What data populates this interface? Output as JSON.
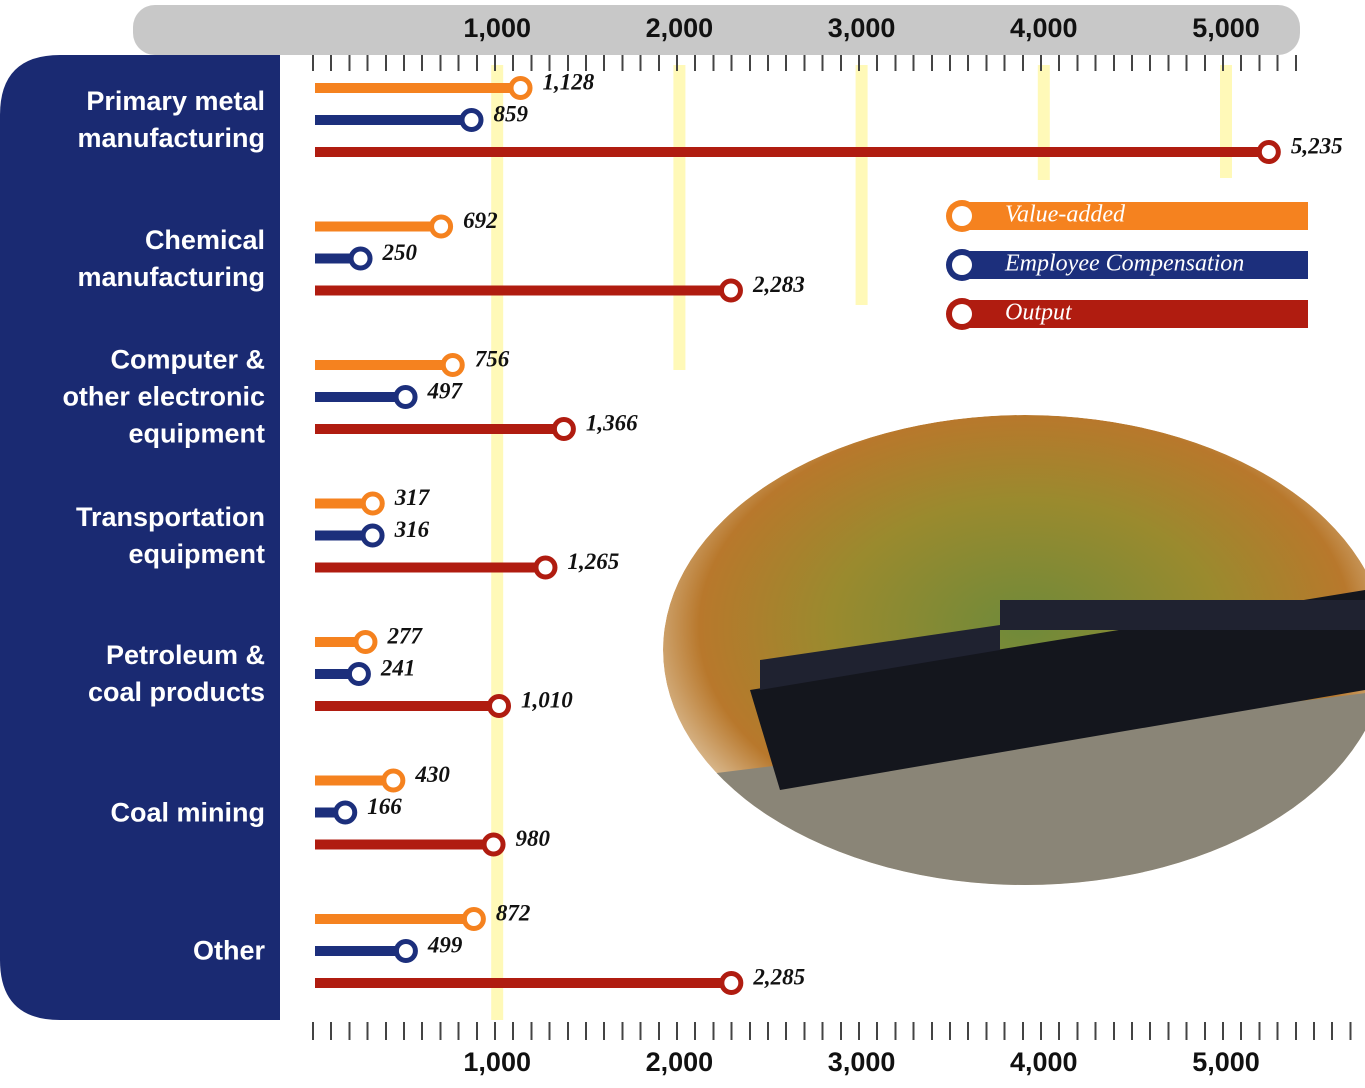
{
  "chart_data": {
    "type": "lollipop",
    "categories": [
      "Primary metal\nmanufacturing",
      "Chemical\nmanufacturing",
      "Computer &\nother electronic\nequipment",
      "Transportation\nequipment",
      "Petroleum &\ncoal products",
      "Coal mining",
      "Other"
    ],
    "series": [
      {
        "name": "Value-added",
        "color": "#f5821f",
        "values": [
          1128,
          692,
          756,
          317,
          277,
          430,
          872
        ],
        "value_labels": [
          "1,128",
          "692",
          "756",
          "317",
          "277",
          "430",
          "872"
        ]
      },
      {
        "name": "Employee Compensation",
        "color": "#1c2f7c",
        "values": [
          859,
          250,
          497,
          316,
          241,
          166,
          499
        ],
        "value_labels": [
          "859",
          "250",
          "497",
          "316",
          "241",
          "166",
          "499"
        ]
      },
      {
        "name": "Output",
        "color": "#b01c10",
        "values": [
          5235,
          2283,
          1366,
          1265,
          1010,
          980,
          2285
        ],
        "value_labels": [
          "5,235",
          "2,283",
          "1,366",
          "1,265",
          "1,010",
          "980",
          "2,285"
        ]
      }
    ],
    "xlim": [
      0,
      5500
    ],
    "xticks": [
      {
        "value": 1000,
        "label": "1,000"
      },
      {
        "value": 2000,
        "label": "2,000"
      },
      {
        "value": 3000,
        "label": "3,000"
      },
      {
        "value": 4000,
        "label": "4,000"
      },
      {
        "value": 5000,
        "label": "5,000"
      }
    ],
    "grid": true,
    "grid_color": "#fff9b8"
  }
}
